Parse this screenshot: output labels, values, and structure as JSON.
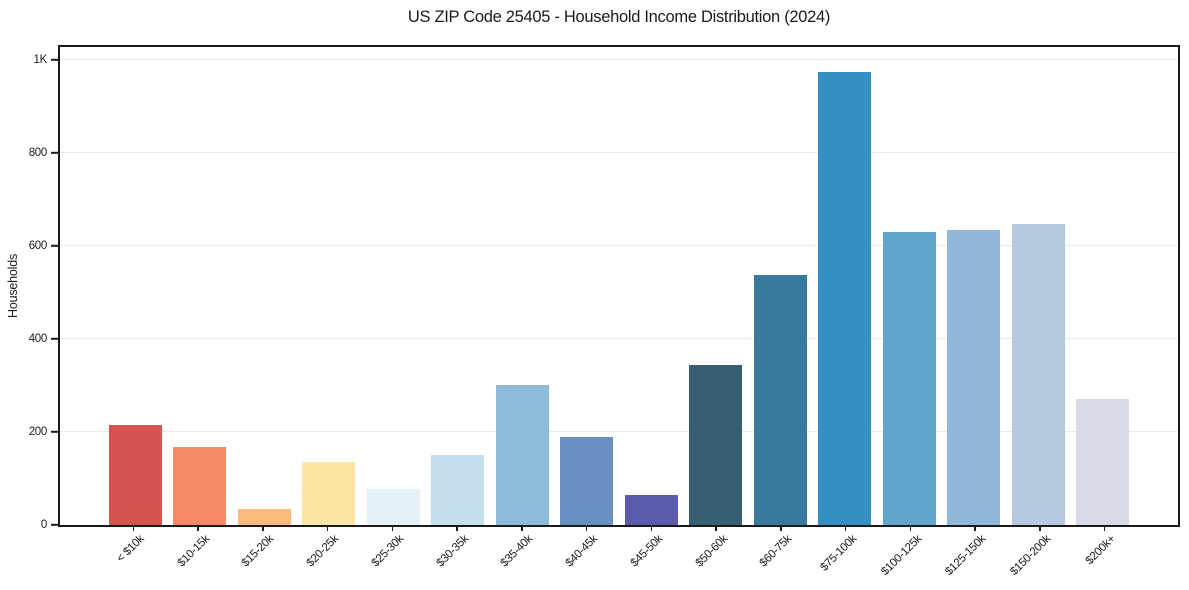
{
  "chart_data": {
    "type": "bar",
    "title": "US ZIP Code 25405 - Household Income Distribution (2024)",
    "xlabel": "",
    "ylabel": "Households",
    "categories": [
      "< $10k",
      "$10-15k",
      "$15-20k",
      "$20-25k",
      "$25-30k",
      "$30-35k",
      "$35-40k",
      "$40-45k",
      "$45-50k",
      "$50-60k",
      "$60-75k",
      "$75-100k",
      "$100-125k",
      "$125-150k",
      "$150-200k",
      "$200k+"
    ],
    "values": [
      216,
      168,
      34,
      135,
      78,
      151,
      302,
      190,
      64,
      345,
      537,
      975,
      630,
      634,
      647,
      270
    ],
    "bar_colors": [
      "#d6544f",
      "#f48a66",
      "#fbbb7c",
      "#fce5a0",
      "#e4f1f6",
      "#c3dfec",
      "#8fbbdb",
      "#6a8fc3",
      "#5c5bab",
      "#375e72",
      "#387a9e",
      "#3590c2",
      "#60a6cc",
      "#91b8d9",
      "#b6c9e0",
      "#d9dae8"
    ],
    "y_ticks": [
      {
        "label": "0",
        "value": 0
      },
      {
        "label": "200",
        "value": 200
      },
      {
        "label": "400",
        "value": 400
      },
      {
        "label": "600",
        "value": 600
      },
      {
        "label": "800",
        "value": 800
      },
      {
        "label": "1K",
        "value": 1000
      }
    ],
    "ylim": [
      0,
      1028
    ],
    "grid": "horizontal",
    "grid_color": "#ebebeb",
    "frame_color": "#1a1a1a",
    "legend": "none",
    "x_tick_rotation_deg": 45
  }
}
